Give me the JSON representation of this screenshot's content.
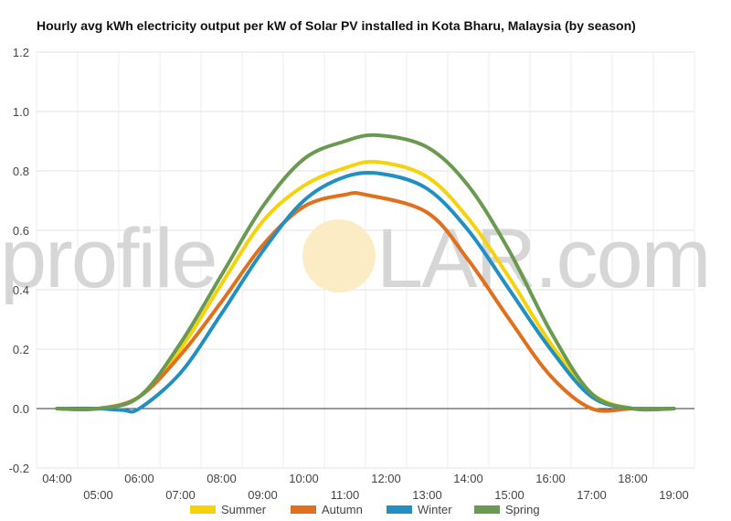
{
  "watermark": {
    "text_left": "profile",
    "text_right": "LAR.com"
  },
  "chart_data": {
    "type": "line",
    "title": "Hourly avg kWh electricity output per kW of Solar PV installed in Kota Bharu, Malaysia (by season)",
    "xlabel": "",
    "ylabel": "",
    "x_ticks": [
      "04:00",
      "05:00",
      "06:00",
      "07:00",
      "08:00",
      "09:00",
      "10:00",
      "11:00",
      "12:00",
      "13:00",
      "14:00",
      "15:00",
      "16:00",
      "17:00",
      "18:00",
      "19:00"
    ],
    "x_hours": [
      4,
      5,
      6,
      7,
      8,
      9,
      10,
      11,
      12,
      13,
      14,
      15,
      16,
      17,
      18,
      19
    ],
    "y_ticks": [
      "-0.2",
      "0.0",
      "0.2",
      "0.4",
      "0.6",
      "0.8",
      "1.0",
      "1.2"
    ],
    "ylim": [
      -0.2,
      1.2
    ],
    "xlim": [
      3.5,
      19.5
    ],
    "grid": true,
    "legend": "bottom",
    "series": [
      {
        "name": "Summer",
        "color": "#f6d20a",
        "x": [
          4,
          5,
          6,
          7,
          8,
          9,
          10,
          11,
          11.8,
          13,
          14,
          15,
          16,
          17,
          18,
          19
        ],
        "y": [
          0,
          0,
          0.04,
          0.2,
          0.42,
          0.63,
          0.75,
          0.81,
          0.83,
          0.78,
          0.64,
          0.44,
          0.22,
          0.05,
          0,
          0
        ]
      },
      {
        "name": "Autumn",
        "color": "#e0701e",
        "x": [
          4,
          5,
          6,
          7,
          8,
          9,
          10,
          11,
          11.5,
          13,
          14,
          15,
          16,
          17,
          18,
          19
        ],
        "y": [
          0,
          0,
          0.04,
          0.18,
          0.36,
          0.55,
          0.68,
          0.72,
          0.72,
          0.66,
          0.5,
          0.3,
          0.11,
          0,
          0,
          0
        ]
      },
      {
        "name": "Winter",
        "color": "#2190c0",
        "x": [
          4,
          5,
          5.6,
          6,
          7,
          8,
          9,
          10,
          11,
          11.9,
          13,
          14,
          15,
          16,
          17,
          18,
          19
        ],
        "y": [
          0,
          0,
          -0.005,
          0,
          0.12,
          0.32,
          0.53,
          0.7,
          0.78,
          0.79,
          0.74,
          0.6,
          0.4,
          0.2,
          0.04,
          0,
          0
        ]
      },
      {
        "name": "Spring",
        "color": "#6a9a52",
        "x": [
          4,
          5,
          6,
          7,
          8,
          9,
          10,
          11,
          11.8,
          13,
          14,
          15,
          16,
          17,
          18,
          19
        ],
        "y": [
          0,
          0,
          0.04,
          0.22,
          0.45,
          0.68,
          0.84,
          0.9,
          0.92,
          0.88,
          0.75,
          0.53,
          0.26,
          0.05,
          0,
          0
        ]
      }
    ]
  }
}
